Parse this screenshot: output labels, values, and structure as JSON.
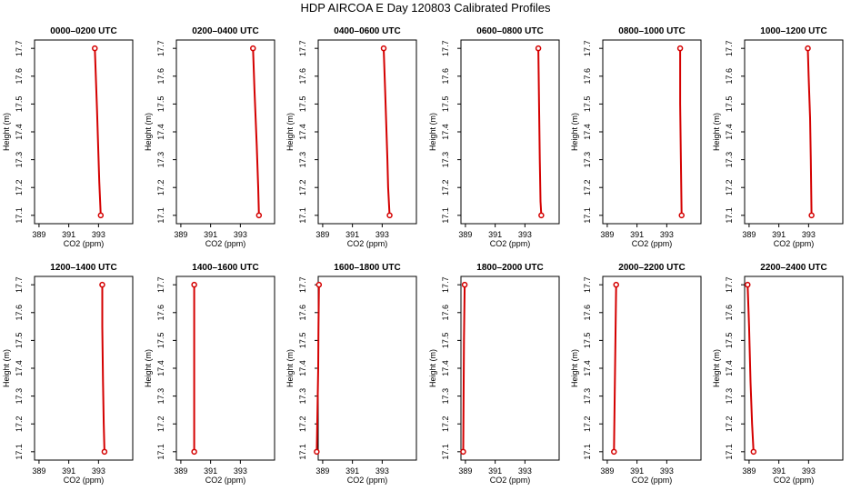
{
  "page": {
    "title": "HDP AIRCOA E  Day 120803  Calibrated Profiles"
  },
  "colors": {
    "profile": "#d40000",
    "axis": "#000000",
    "background": "#ffffff"
  },
  "chart_data": [
    {
      "type": "line",
      "title": "0000–0200 UTC",
      "xlabel": "CO2 (ppm)",
      "ylabel": "Height (m)",
      "xlim": [
        388.7,
        395.3
      ],
      "ylim": [
        17.07,
        17.73
      ],
      "x_ticks": [
        "389",
        "391",
        "393"
      ],
      "y_ticks": [
        "17.1",
        "17.2",
        "17.3",
        "17.4",
        "17.5",
        "17.6",
        "17.7"
      ],
      "series": [
        {
          "points": [
            [
              392.75,
              17.7
            ],
            [
              392.9,
              17.48
            ],
            [
              393.05,
              17.22
            ],
            [
              393.15,
              17.1
            ]
          ]
        }
      ]
    },
    {
      "type": "line",
      "title": "0200–0400 UTC",
      "xlabel": "CO2 (ppm)",
      "ylabel": "Height (m)",
      "xlim": [
        388.7,
        395.3
      ],
      "ylim": [
        17.07,
        17.73
      ],
      "x_ticks": [
        "389",
        "391",
        "393"
      ],
      "y_ticks": [
        "17.1",
        "17.2",
        "17.3",
        "17.4",
        "17.5",
        "17.6",
        "17.7"
      ],
      "series": [
        {
          "points": [
            [
              393.85,
              17.7
            ],
            [
              393.95,
              17.55
            ],
            [
              394.1,
              17.35
            ],
            [
              394.2,
              17.2
            ],
            [
              394.25,
              17.1
            ]
          ]
        }
      ]
    },
    {
      "type": "line",
      "title": "0400–0600 UTC",
      "xlabel": "CO2 (ppm)",
      "ylabel": "Height (m)",
      "xlim": [
        388.7,
        395.3
      ],
      "ylim": [
        17.07,
        17.73
      ],
      "x_ticks": [
        "389",
        "391",
        "393"
      ],
      "y_ticks": [
        "17.1",
        "17.2",
        "17.3",
        "17.4",
        "17.5",
        "17.6",
        "17.7"
      ],
      "series": [
        {
          "points": [
            [
              393.1,
              17.7
            ],
            [
              393.2,
              17.55
            ],
            [
              393.35,
              17.3
            ],
            [
              393.4,
              17.2
            ],
            [
              393.5,
              17.1
            ]
          ]
        }
      ]
    },
    {
      "type": "line",
      "title": "0600–0800 UTC",
      "xlabel": "CO2 (ppm)",
      "ylabel": "Height (m)",
      "xlim": [
        388.7,
        395.3
      ],
      "ylim": [
        17.07,
        17.73
      ],
      "x_ticks": [
        "389",
        "391",
        "393"
      ],
      "y_ticks": [
        "17.1",
        "17.2",
        "17.3",
        "17.4",
        "17.5",
        "17.6",
        "17.7"
      ],
      "series": [
        {
          "points": [
            [
              393.9,
              17.7
            ],
            [
              393.95,
              17.5
            ],
            [
              394.0,
              17.3
            ],
            [
              394.05,
              17.15
            ],
            [
              394.1,
              17.1
            ]
          ]
        }
      ]
    },
    {
      "type": "line",
      "title": "0800–1000 UTC",
      "xlabel": "CO2 (ppm)",
      "ylabel": "Height (m)",
      "xlim": [
        388.7,
        395.3
      ],
      "ylim": [
        17.07,
        17.73
      ],
      "x_ticks": [
        "389",
        "391",
        "393"
      ],
      "y_ticks": [
        "17.1",
        "17.2",
        "17.3",
        "17.4",
        "17.5",
        "17.6",
        "17.7"
      ],
      "series": [
        {
          "points": [
            [
              393.9,
              17.7
            ],
            [
              393.9,
              17.5
            ],
            [
              393.95,
              17.3
            ],
            [
              394.0,
              17.1
            ]
          ]
        }
      ]
    },
    {
      "type": "line",
      "title": "1000–1200 UTC",
      "xlabel": "CO2 (ppm)",
      "ylabel": "Height (m)",
      "xlim": [
        388.7,
        395.3
      ],
      "ylim": [
        17.07,
        17.73
      ],
      "x_ticks": [
        "389",
        "391",
        "393"
      ],
      "y_ticks": [
        "17.1",
        "17.2",
        "17.3",
        "17.4",
        "17.5",
        "17.6",
        "17.7"
      ],
      "series": [
        {
          "points": [
            [
              392.95,
              17.7
            ],
            [
              393.0,
              17.6
            ],
            [
              393.1,
              17.45
            ],
            [
              393.15,
              17.3
            ],
            [
              393.2,
              17.1
            ]
          ]
        }
      ]
    },
    {
      "type": "line",
      "title": "1200–1400 UTC",
      "xlabel": "CO2 (ppm)",
      "ylabel": "Height (m)",
      "xlim": [
        388.7,
        395.3
      ],
      "ylim": [
        17.07,
        17.73
      ],
      "x_ticks": [
        "389",
        "391",
        "393"
      ],
      "y_ticks": [
        "17.1",
        "17.2",
        "17.3",
        "17.4",
        "17.5",
        "17.6",
        "17.7"
      ],
      "series": [
        {
          "points": [
            [
              393.25,
              17.7
            ],
            [
              393.25,
              17.55
            ],
            [
              393.3,
              17.35
            ],
            [
              393.35,
              17.2
            ],
            [
              393.4,
              17.1
            ]
          ]
        }
      ]
    },
    {
      "type": "line",
      "title": "1400–1600 UTC",
      "xlabel": "CO2 (ppm)",
      "ylabel": "Height (m)",
      "xlim": [
        388.7,
        395.3
      ],
      "ylim": [
        17.07,
        17.73
      ],
      "x_ticks": [
        "389",
        "391",
        "393"
      ],
      "y_ticks": [
        "17.1",
        "17.2",
        "17.3",
        "17.4",
        "17.5",
        "17.6",
        "17.7"
      ],
      "series": [
        {
          "points": [
            [
              389.9,
              17.7
            ],
            [
              389.9,
              17.4
            ],
            [
              389.9,
              17.1
            ]
          ]
        }
      ]
    },
    {
      "type": "line",
      "title": "1600–1800 UTC",
      "xlabel": "CO2 (ppm)",
      "ylabel": "Height (m)",
      "xlim": [
        388.7,
        395.3
      ],
      "ylim": [
        17.07,
        17.73
      ],
      "x_ticks": [
        "389",
        "391",
        "393"
      ],
      "y_ticks": [
        "17.1",
        "17.2",
        "17.3",
        "17.4",
        "17.5",
        "17.6",
        "17.7"
      ],
      "series": [
        {
          "points": [
            [
              388.75,
              17.7
            ],
            [
              388.72,
              17.55
            ],
            [
              388.7,
              17.4
            ],
            [
              388.65,
              17.25
            ],
            [
              388.6,
              17.1
            ]
          ]
        }
      ]
    },
    {
      "type": "line",
      "title": "1800–2000 UTC",
      "xlabel": "CO2 (ppm)",
      "ylabel": "Height (m)",
      "xlim": [
        388.7,
        395.3
      ],
      "ylim": [
        17.07,
        17.73
      ],
      "x_ticks": [
        "389",
        "391",
        "393"
      ],
      "y_ticks": [
        "17.1",
        "17.2",
        "17.3",
        "17.4",
        "17.5",
        "17.6",
        "17.7"
      ],
      "series": [
        {
          "points": [
            [
              388.95,
              17.7
            ],
            [
              388.9,
              17.5
            ],
            [
              388.88,
              17.3
            ],
            [
              388.85,
              17.1
            ]
          ]
        }
      ]
    },
    {
      "type": "line",
      "title": "2000–2200 UTC",
      "xlabel": "CO2 (ppm)",
      "ylabel": "Height (m)",
      "xlim": [
        388.7,
        395.3
      ],
      "ylim": [
        17.07,
        17.73
      ],
      "x_ticks": [
        "389",
        "391",
        "393"
      ],
      "y_ticks": [
        "17.1",
        "17.2",
        "17.3",
        "17.4",
        "17.5",
        "17.6",
        "17.7"
      ],
      "series": [
        {
          "points": [
            [
              389.6,
              17.7
            ],
            [
              389.55,
              17.5
            ],
            [
              389.5,
              17.3
            ],
            [
              389.45,
              17.1
            ]
          ]
        }
      ]
    },
    {
      "type": "line",
      "title": "2200–2400 UTC",
      "xlabel": "CO2 (ppm)",
      "ylabel": "Height (m)",
      "xlim": [
        388.7,
        395.3
      ],
      "ylim": [
        17.07,
        17.73
      ],
      "x_ticks": [
        "389",
        "391",
        "393"
      ],
      "y_ticks": [
        "17.1",
        "17.2",
        "17.3",
        "17.4",
        "17.5",
        "17.6",
        "17.7"
      ],
      "series": [
        {
          "points": [
            [
              388.9,
              17.7
            ],
            [
              389.0,
              17.55
            ],
            [
              389.1,
              17.35
            ],
            [
              389.2,
              17.2
            ],
            [
              389.3,
              17.1
            ]
          ]
        }
      ]
    }
  ]
}
